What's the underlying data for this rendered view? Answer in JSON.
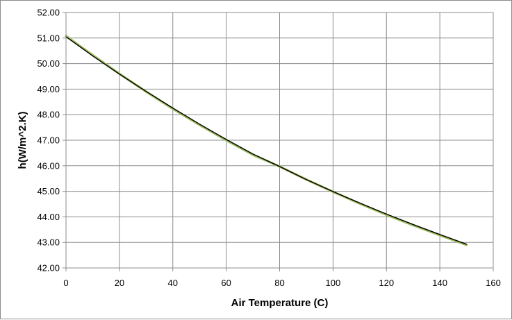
{
  "chart_data": {
    "type": "line",
    "title": "",
    "xlabel": "Air Temperature (C)",
    "ylabel": "h(W/m^2.K)",
    "xlim": [
      0,
      160
    ],
    "ylim": [
      42.0,
      52.0
    ],
    "x_ticks": [
      "0",
      "20",
      "40",
      "60",
      "80",
      "100",
      "120",
      "140",
      "160"
    ],
    "y_ticks": [
      "42.00",
      "43.00",
      "44.00",
      "45.00",
      "46.00",
      "47.00",
      "48.00",
      "49.00",
      "50.00",
      "51.00",
      "52.00"
    ],
    "grid": true,
    "legend": "none",
    "series": [
      {
        "color": "#9bbb59",
        "x": [
          0,
          10,
          20,
          30,
          40,
          50,
          60,
          70,
          80,
          90,
          100,
          110,
          120,
          130,
          140,
          150
        ],
        "y": [
          51.08,
          50.33,
          49.6,
          48.9,
          48.23,
          47.6,
          47.0,
          46.43,
          45.97,
          45.46,
          44.98,
          44.52,
          44.08,
          43.67,
          43.28,
          42.9
        ]
      },
      {
        "color": "#000000",
        "x": [
          0,
          10,
          20,
          30,
          40,
          50,
          60,
          70,
          80,
          90,
          100,
          110,
          120,
          130,
          140,
          150
        ],
        "y": [
          51.05,
          50.3,
          49.59,
          48.91,
          48.26,
          47.63,
          47.03,
          46.46,
          45.97,
          45.46,
          44.99,
          44.54,
          44.11,
          43.7,
          43.31,
          42.93
        ]
      }
    ]
  }
}
